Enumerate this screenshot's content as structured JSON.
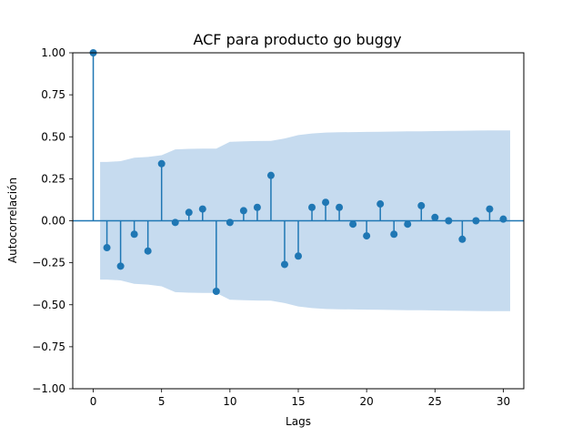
{
  "chart_data": {
    "type": "stem",
    "title": "ACF para producto go buggy",
    "xlabel": "Lags",
    "ylabel": "Autocorrelación",
    "xlim": [
      -1.5,
      31.5
    ],
    "ylim": [
      -1.0,
      1.0
    ],
    "xticks": [
      0,
      5,
      10,
      15,
      20,
      25,
      30
    ],
    "xtick_labels": [
      "0",
      "5",
      "10",
      "15",
      "20",
      "25",
      "30"
    ],
    "yticks": [
      -1.0,
      -0.75,
      -0.5,
      -0.25,
      0.0,
      0.25,
      0.5,
      0.75,
      1.0
    ],
    "ytick_labels": [
      "−1.00",
      "−0.75",
      "−0.50",
      "−0.25",
      "0.00",
      "0.25",
      "0.50",
      "0.75",
      "1.00"
    ],
    "grid": false,
    "colors": {
      "stem": "#1f77b4",
      "confidence_band": "#c6dbef"
    },
    "lags": [
      0,
      1,
      2,
      3,
      4,
      5,
      6,
      7,
      8,
      9,
      10,
      11,
      12,
      13,
      14,
      15,
      16,
      17,
      18,
      19,
      20,
      21,
      22,
      23,
      24,
      25,
      26,
      27,
      28,
      29,
      30
    ],
    "values": [
      1.0,
      -0.16,
      -0.27,
      -0.08,
      -0.18,
      0.34,
      -0.01,
      0.05,
      0.07,
      -0.42,
      -0.01,
      0.06,
      0.08,
      0.27,
      -0.26,
      -0.21,
      0.08,
      0.11,
      0.08,
      -0.02,
      -0.09,
      0.1,
      -0.08,
      -0.02,
      0.09,
      0.02,
      0.0,
      -0.11,
      0.0,
      0.07,
      0.01
    ],
    "confidence_band": {
      "lags": [
        0.5,
        1,
        2,
        3,
        4,
        5,
        6,
        7,
        8,
        9,
        10,
        11,
        12,
        13,
        14,
        15,
        16,
        17,
        18,
        19,
        20,
        21,
        22,
        23,
        24,
        25,
        26,
        27,
        28,
        29,
        30,
        30.5
      ],
      "upper": [
        0.35,
        0.35,
        0.355,
        0.375,
        0.38,
        0.39,
        0.425,
        0.428,
        0.43,
        0.43,
        0.47,
        0.473,
        0.475,
        0.476,
        0.49,
        0.51,
        0.52,
        0.525,
        0.527,
        0.528,
        0.529,
        0.53,
        0.531,
        0.532,
        0.533,
        0.534,
        0.535,
        0.536,
        0.537,
        0.538,
        0.538,
        0.538
      ]
    }
  }
}
